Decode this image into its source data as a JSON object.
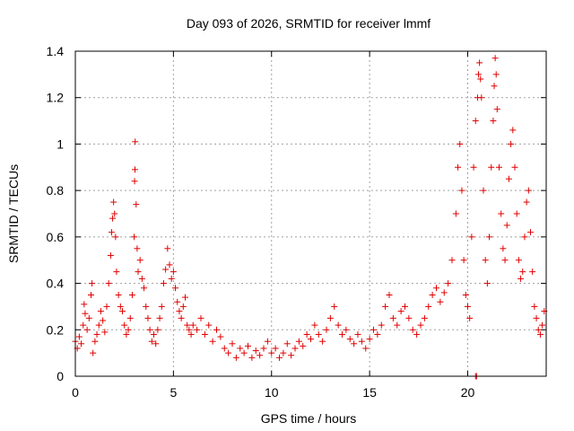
{
  "chart_data": {
    "type": "scatter",
    "title": "Day 093 of 2026, SRMTID for receiver lmmf",
    "xlabel": "GPS time / hours",
    "ylabel": "SRMTID / TECUs",
    "xlim": [
      0,
      24
    ],
    "ylim": [
      0,
      1.4
    ],
    "xticks": [
      0,
      5,
      10,
      15,
      20
    ],
    "yticks": [
      0,
      0.2,
      0.4,
      0.6,
      0.8,
      1,
      1.2,
      1.4
    ],
    "xtick_labels": [
      "0",
      "5",
      "10",
      "15",
      "20"
    ],
    "ytick_labels": [
      "0",
      "0.2",
      "0.4",
      "0.6",
      "0.8",
      "1",
      "1.2",
      "1.4"
    ],
    "grid": true,
    "marker": "+",
    "color": "#e00000",
    "series": [
      {
        "name": "SRMTID",
        "points": [
          [
            0.0,
            0.15
          ],
          [
            0.1,
            0.12
          ],
          [
            0.2,
            0.17
          ],
          [
            0.3,
            0.14
          ],
          [
            0.4,
            0.22
          ],
          [
            0.45,
            0.31
          ],
          [
            0.5,
            0.27
          ],
          [
            0.6,
            0.2
          ],
          [
            0.7,
            0.25
          ],
          [
            0.8,
            0.35
          ],
          [
            0.85,
            0.4
          ],
          [
            0.9,
            0.1
          ],
          [
            1.0,
            0.15
          ],
          [
            1.1,
            0.18
          ],
          [
            1.2,
            0.22
          ],
          [
            1.3,
            0.28
          ],
          [
            1.4,
            0.24
          ],
          [
            1.5,
            0.19
          ],
          [
            1.6,
            0.3
          ],
          [
            1.7,
            0.4
          ],
          [
            1.8,
            0.52
          ],
          [
            1.85,
            0.62
          ],
          [
            1.9,
            0.68
          ],
          [
            1.95,
            0.75
          ],
          [
            2.0,
            0.7
          ],
          [
            2.05,
            0.6
          ],
          [
            2.1,
            0.45
          ],
          [
            2.2,
            0.35
          ],
          [
            2.3,
            0.3
          ],
          [
            2.4,
            0.28
          ],
          [
            2.5,
            0.22
          ],
          [
            2.6,
            0.18
          ],
          [
            2.7,
            0.2
          ],
          [
            2.8,
            0.25
          ],
          [
            2.9,
            0.35
          ],
          [
            3.0,
            0.6
          ],
          [
            3.02,
            0.84
          ],
          [
            3.04,
            0.89
          ],
          [
            3.05,
            1.01
          ],
          [
            3.1,
            0.74
          ],
          [
            3.15,
            0.55
          ],
          [
            3.2,
            0.45
          ],
          [
            3.3,
            0.5
          ],
          [
            3.4,
            0.42
          ],
          [
            3.5,
            0.38
          ],
          [
            3.6,
            0.3
          ],
          [
            3.7,
            0.25
          ],
          [
            3.8,
            0.2
          ],
          [
            3.9,
            0.15
          ],
          [
            4.0,
            0.18
          ],
          [
            4.1,
            0.14
          ],
          [
            4.2,
            0.2
          ],
          [
            4.3,
            0.25
          ],
          [
            4.4,
            0.3
          ],
          [
            4.5,
            0.4
          ],
          [
            4.6,
            0.46
          ],
          [
            4.7,
            0.55
          ],
          [
            4.8,
            0.48
          ],
          [
            4.9,
            0.42
          ],
          [
            5.0,
            0.45
          ],
          [
            5.1,
            0.38
          ],
          [
            5.2,
            0.32
          ],
          [
            5.3,
            0.28
          ],
          [
            5.4,
            0.25
          ],
          [
            5.5,
            0.3
          ],
          [
            5.6,
            0.34
          ],
          [
            5.7,
            0.22
          ],
          [
            5.8,
            0.2
          ],
          [
            5.9,
            0.18
          ],
          [
            6.0,
            0.22
          ],
          [
            6.2,
            0.2
          ],
          [
            6.4,
            0.25
          ],
          [
            6.6,
            0.18
          ],
          [
            6.8,
            0.22
          ],
          [
            7.0,
            0.15
          ],
          [
            7.2,
            0.2
          ],
          [
            7.4,
            0.17
          ],
          [
            7.6,
            0.12
          ],
          [
            7.8,
            0.1
          ],
          [
            8.0,
            0.14
          ],
          [
            8.2,
            0.08
          ],
          [
            8.4,
            0.12
          ],
          [
            8.6,
            0.1
          ],
          [
            8.8,
            0.13
          ],
          [
            9.0,
            0.08
          ],
          [
            9.2,
            0.11
          ],
          [
            9.4,
            0.09
          ],
          [
            9.6,
            0.12
          ],
          [
            9.8,
            0.15
          ],
          [
            10.0,
            0.1
          ],
          [
            10.2,
            0.12
          ],
          [
            10.4,
            0.08
          ],
          [
            10.6,
            0.1
          ],
          [
            10.8,
            0.14
          ],
          [
            11.0,
            0.09
          ],
          [
            11.2,
            0.12
          ],
          [
            11.4,
            0.15
          ],
          [
            11.6,
            0.13
          ],
          [
            11.8,
            0.18
          ],
          [
            12.0,
            0.16
          ],
          [
            12.2,
            0.22
          ],
          [
            12.4,
            0.18
          ],
          [
            12.6,
            0.15
          ],
          [
            12.8,
            0.2
          ],
          [
            13.0,
            0.25
          ],
          [
            13.2,
            0.3
          ],
          [
            13.4,
            0.22
          ],
          [
            13.6,
            0.18
          ],
          [
            13.8,
            0.2
          ],
          [
            14.0,
            0.16
          ],
          [
            14.2,
            0.14
          ],
          [
            14.4,
            0.18
          ],
          [
            14.6,
            0.15
          ],
          [
            14.8,
            0.12
          ],
          [
            15.0,
            0.16
          ],
          [
            15.2,
            0.2
          ],
          [
            15.4,
            0.18
          ],
          [
            15.6,
            0.22
          ],
          [
            15.8,
            0.3
          ],
          [
            16.0,
            0.35
          ],
          [
            16.2,
            0.25
          ],
          [
            16.4,
            0.22
          ],
          [
            16.6,
            0.28
          ],
          [
            16.8,
            0.3
          ],
          [
            17.0,
            0.25
          ],
          [
            17.2,
            0.2
          ],
          [
            17.4,
            0.18
          ],
          [
            17.6,
            0.22
          ],
          [
            17.8,
            0.25
          ],
          [
            18.0,
            0.3
          ],
          [
            18.2,
            0.35
          ],
          [
            18.4,
            0.38
          ],
          [
            18.6,
            0.32
          ],
          [
            18.8,
            0.36
          ],
          [
            19.0,
            0.4
          ],
          [
            19.2,
            0.5
          ],
          [
            19.4,
            0.7
          ],
          [
            19.5,
            0.9
          ],
          [
            19.6,
            1.0
          ],
          [
            19.7,
            0.8
          ],
          [
            19.8,
            0.5
          ],
          [
            19.9,
            0.35
          ],
          [
            20.0,
            0.3
          ],
          [
            20.1,
            0.25
          ],
          [
            20.2,
            0.6
          ],
          [
            20.3,
            0.9
          ],
          [
            20.4,
            1.1
          ],
          [
            20.5,
            1.2
          ],
          [
            20.55,
            1.3
          ],
          [
            20.6,
            1.35
          ],
          [
            20.65,
            1.28
          ],
          [
            20.7,
            1.2
          ],
          [
            20.8,
            0.8
          ],
          [
            20.9,
            0.5
          ],
          [
            21.0,
            0.4
          ],
          [
            21.1,
            0.6
          ],
          [
            21.2,
            0.9
          ],
          [
            21.3,
            1.1
          ],
          [
            21.35,
            1.25
          ],
          [
            21.4,
            1.37
          ],
          [
            21.45,
            1.3
          ],
          [
            21.5,
            1.15
          ],
          [
            21.6,
            0.9
          ],
          [
            21.7,
            0.7
          ],
          [
            21.8,
            0.55
          ],
          [
            21.9,
            0.5
          ],
          [
            22.0,
            0.65
          ],
          [
            22.1,
            0.85
          ],
          [
            22.2,
            1.0
          ],
          [
            22.3,
            1.06
          ],
          [
            22.4,
            0.9
          ],
          [
            22.5,
            0.7
          ],
          [
            22.6,
            0.5
          ],
          [
            22.7,
            0.42
          ],
          [
            22.8,
            0.45
          ],
          [
            22.9,
            0.6
          ],
          [
            23.0,
            0.75
          ],
          [
            23.1,
            0.8
          ],
          [
            23.2,
            0.62
          ],
          [
            23.3,
            0.45
          ],
          [
            23.4,
            0.3
          ],
          [
            23.5,
            0.25
          ],
          [
            23.6,
            0.2
          ],
          [
            23.7,
            0.18
          ],
          [
            23.8,
            0.22
          ],
          [
            23.9,
            0.28
          ],
          [
            20.4,
            0.0
          ],
          [
            20.45,
            0.0
          ]
        ]
      }
    ]
  }
}
